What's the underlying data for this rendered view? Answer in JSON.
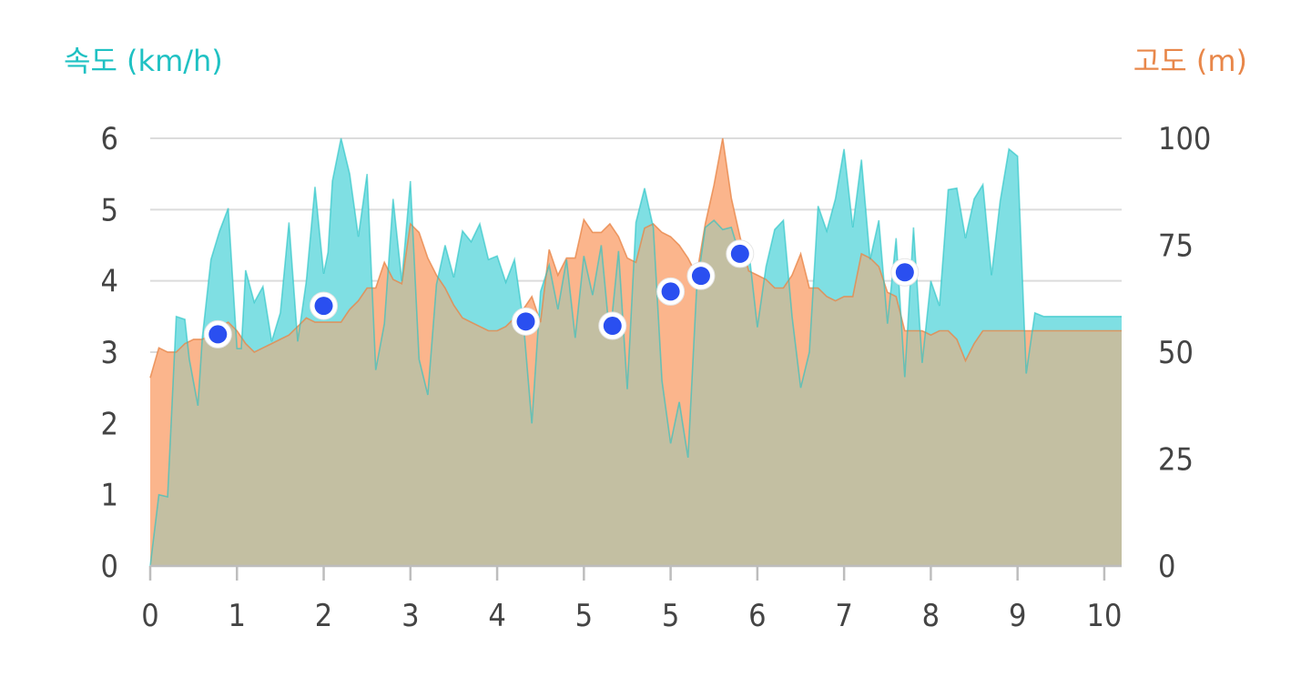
{
  "colors": {
    "speed": "#1fc1c3",
    "speed_fill": "#7fdfe3",
    "altitude": "#e8874a",
    "altitude_fill": "#fbb58c",
    "overlap_fill": "#c3bfa2",
    "marker": "#2a4ff0",
    "grid": "#dcdcdc",
    "tick_text": "#444444"
  },
  "chart_data": {
    "type": "area",
    "left_axis_title": "속도 (km/h)",
    "right_axis_title": "고도 (m)",
    "x_ticks": [
      "0",
      "1",
      "2",
      "3",
      "4",
      "5",
      "5",
      "6",
      "7",
      "8",
      "9",
      "10"
    ],
    "x_tick_values": [
      0,
      1,
      2,
      3,
      4,
      5,
      6,
      7,
      8,
      9,
      10,
      11
    ],
    "y_left_ticks": [
      0,
      1,
      2,
      3,
      4,
      5,
      6
    ],
    "y_left_range": [
      0,
      6
    ],
    "y_right_ticks": [
      0,
      25,
      50,
      75,
      100
    ],
    "y_right_range": [
      0,
      100
    ],
    "grid": true,
    "series": [
      {
        "name": "속도 (km/h)",
        "axis": "left",
        "x": [
          0,
          0.1,
          0.2,
          0.3,
          0.4,
          0.45,
          0.55,
          0.6,
          0.7,
          0.8,
          0.9,
          1.0,
          1.05,
          1.1,
          1.2,
          1.3,
          1.4,
          1.5,
          1.6,
          1.7,
          1.8,
          1.9,
          2.0,
          2.05,
          2.1,
          2.2,
          2.3,
          2.4,
          2.5,
          2.6,
          2.7,
          2.8,
          2.9,
          3.0,
          3.1,
          3.2,
          3.3,
          3.4,
          3.5,
          3.6,
          3.7,
          3.8,
          3.9,
          4.0,
          4.1,
          4.2,
          4.3,
          4.4,
          4.5,
          4.6,
          4.7,
          4.8,
          4.9,
          5.0,
          5.1,
          5.2,
          5.3,
          5.4,
          5.5,
          5.6,
          5.7,
          5.8,
          5.9,
          6.0,
          6.1,
          6.2,
          6.3,
          6.4,
          6.5,
          6.6,
          6.7,
          6.8,
          6.9,
          7.0,
          7.1,
          7.2,
          7.3,
          7.4,
          7.5,
          7.6,
          7.7,
          7.8,
          7.9,
          8.0,
          8.1,
          8.2,
          8.3,
          8.4,
          8.5,
          8.6,
          8.7,
          8.8,
          8.9,
          9.0,
          9.1,
          9.2,
          9.3,
          9.4,
          9.5,
          9.6,
          9.7,
          9.8,
          9.9,
          10.0,
          10.1,
          10.2,
          10.3,
          10.4,
          10.5,
          10.6,
          10.7,
          10.8,
          10.9,
          11.0,
          11.1,
          11.2
        ],
        "values": [
          0,
          1.0,
          0.97,
          3.5,
          3.46,
          2.9,
          2.25,
          3.2,
          4.3,
          4.7,
          5.02,
          3.05,
          3.05,
          4.15,
          3.7,
          3.92,
          3.15,
          3.55,
          4.82,
          3.15,
          4.0,
          5.32,
          4.1,
          4.4,
          5.4,
          6.0,
          5.5,
          4.62,
          5.5,
          2.75,
          3.4,
          5.15,
          4.0,
          5.4,
          2.9,
          2.4,
          3.95,
          4.5,
          4.05,
          4.7,
          4.55,
          4.8,
          4.3,
          4.35,
          3.98,
          4.3,
          3.45,
          2.0,
          3.85,
          4.22,
          3.6,
          4.3,
          3.2,
          4.35,
          3.8,
          4.5,
          3.2,
          4.42,
          2.48,
          4.82,
          5.3,
          4.75,
          2.6,
          1.72,
          2.3,
          1.52,
          3.9,
          4.75,
          4.85,
          4.72,
          4.75,
          4.35,
          4.45,
          3.35,
          4.2,
          4.72,
          4.85,
          3.5,
          2.5,
          3.0,
          5.05,
          4.7,
          5.15,
          5.85,
          4.75,
          5.7,
          4.3,
          4.85,
          3.4,
          4.6,
          2.65,
          4.75,
          2.85,
          4.0,
          3.65,
          5.28,
          5.3,
          4.6,
          5.15,
          5.35,
          4.08,
          5.12,
          5.85,
          5.75,
          2.7,
          3.55,
          3.5,
          3.5,
          3.5,
          3.5,
          3.5,
          3.5,
          3.5,
          3.5,
          3.5,
          3.5
        ],
        "color": "#1fc1c3"
      },
      {
        "name": "고도 (m)",
        "axis": "right",
        "x": [
          0,
          0.1,
          0.2,
          0.3,
          0.4,
          0.5,
          0.6,
          0.7,
          0.8,
          0.9,
          1.0,
          1.1,
          1.2,
          1.3,
          1.4,
          1.5,
          1.6,
          1.7,
          1.8,
          1.9,
          2.0,
          2.1,
          2.2,
          2.3,
          2.4,
          2.5,
          2.6,
          2.7,
          2.8,
          2.9,
          3.0,
          3.1,
          3.2,
          3.3,
          3.4,
          3.5,
          3.6,
          3.7,
          3.8,
          3.9,
          4.0,
          4.1,
          4.2,
          4.3,
          4.4,
          4.5,
          4.6,
          4.7,
          4.8,
          4.9,
          5.0,
          5.1,
          5.2,
          5.3,
          5.4,
          5.5,
          5.6,
          5.7,
          5.8,
          5.9,
          6.0,
          6.1,
          6.2,
          6.3,
          6.4,
          6.5,
          6.6,
          6.7,
          6.8,
          6.9,
          7.0,
          7.1,
          7.2,
          7.3,
          7.4,
          7.5,
          7.6,
          7.7,
          7.8,
          7.9,
          8.0,
          8.1,
          8.2,
          8.3,
          8.4,
          8.5,
          8.6,
          8.7,
          8.8,
          8.9,
          9.0,
          9.1,
          9.2,
          9.3,
          9.4,
          9.5,
          9.6,
          9.7,
          9.8,
          9.9,
          10.0,
          10.1,
          10.2,
          10.3,
          10.4,
          10.5,
          10.6,
          10.7,
          10.8,
          10.9,
          11.0,
          11.1,
          11.2
        ],
        "values": [
          44,
          51,
          50,
          50,
          52,
          53,
          53,
          54,
          56,
          57,
          55,
          52,
          50,
          51,
          52,
          53,
          54,
          56,
          58,
          57,
          57,
          57,
          57,
          60,
          62,
          65,
          65,
          71,
          67,
          66,
          80,
          78,
          72,
          68,
          65,
          61,
          58,
          57,
          56,
          55,
          55,
          56,
          58,
          60,
          63,
          57,
          74,
          68,
          72,
          72,
          81,
          78,
          78,
          80,
          77,
          72,
          71,
          79,
          80,
          78,
          77,
          75,
          72,
          68,
          80,
          89,
          100,
          86,
          77,
          69,
          68,
          67,
          65,
          65,
          68,
          73,
          65,
          65,
          63,
          62,
          63,
          63,
          73,
          72,
          70,
          64,
          63,
          55,
          55,
          55,
          54,
          55,
          55,
          53,
          48,
          52,
          55,
          55,
          55,
          55,
          55,
          55,
          55,
          55,
          55,
          55,
          55,
          55,
          55,
          55,
          55,
          55,
          55
        ],
        "color": "#e8874a"
      }
    ],
    "markers": {
      "x": [
        0.78,
        2.0,
        4.33,
        5.33,
        6.0,
        6.35,
        6.8,
        8.7
      ],
      "speed": [
        3.25,
        3.65,
        3.43,
        3.37,
        3.85,
        4.07,
        4.38,
        4.12
      ]
    }
  }
}
